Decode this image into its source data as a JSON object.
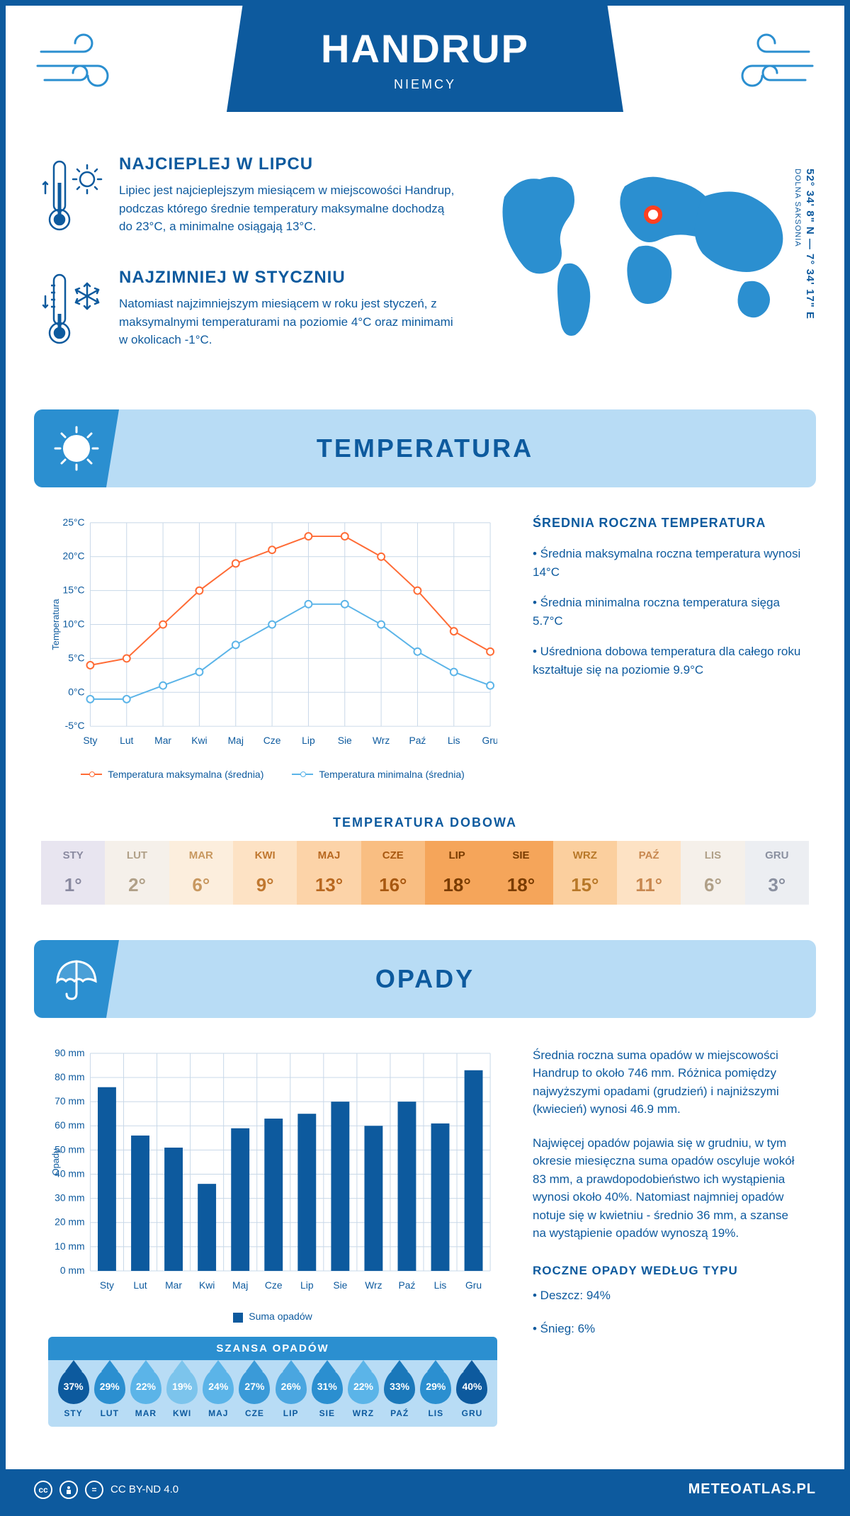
{
  "header": {
    "city": "HANDRUP",
    "country": "NIEMCY",
    "coords": "52° 34' 8\" N — 7° 34' 17\" E",
    "region": "DOLNA SAKSONIA"
  },
  "warmest": {
    "title": "NAJCIEPLEJ W LIPCU",
    "text": "Lipiec jest najcieplejszym miesiącem w miejscowości Handrup, podczas którego średnie temperatury maksymalne dochodzą do 23°C, a minimalne osiągają 13°C."
  },
  "coldest": {
    "title": "NAJZIMNIEJ W STYCZNIU",
    "text": "Natomiast najzimniejszym miesiącem w roku jest styczeń, z maksymalnymi temperaturami na poziomie 4°C oraz minimami w okolicach -1°C."
  },
  "temp_section_title": "TEMPERATURA",
  "temp_chart": {
    "type": "line",
    "months": [
      "Sty",
      "Lut",
      "Mar",
      "Kwi",
      "Maj",
      "Cze",
      "Lip",
      "Sie",
      "Wrz",
      "Paź",
      "Lis",
      "Gru"
    ],
    "y_label": "Temperatura",
    "ylim": [
      -5,
      25
    ],
    "ytick_step": 5,
    "y_unit": "°C",
    "series": [
      {
        "name": "Temperatura maksymalna (średnia)",
        "color": "#ff6b35",
        "values": [
          4,
          5,
          10,
          15,
          19,
          21,
          23,
          23,
          20,
          15,
          9,
          6
        ]
      },
      {
        "name": "Temperatura minimalna (średnia)",
        "color": "#5bb4e8",
        "values": [
          -1,
          -1,
          1,
          3,
          7,
          10,
          13,
          13,
          10,
          6,
          3,
          1
        ]
      }
    ],
    "grid_color": "#c8d8e8",
    "background_color": "#ffffff",
    "line_width": 2,
    "marker": "circle",
    "marker_size": 5
  },
  "temp_stats": {
    "title": "ŚREDNIA ROCZNA TEMPERATURA",
    "bullets": [
      "• Średnia maksymalna roczna temperatura wynosi 14°C",
      "• Średnia minimalna roczna temperatura sięga 5.7°C",
      "• Uśredniona dobowa temperatura dla całego roku kształtuje się na poziomie 9.9°C"
    ]
  },
  "daily_temp": {
    "title": "TEMPERATURA DOBOWA",
    "months": [
      "STY",
      "LUT",
      "MAR",
      "KWI",
      "MAJ",
      "CZE",
      "LIP",
      "SIE",
      "WRZ",
      "PAŹ",
      "LIS",
      "GRU"
    ],
    "values": [
      "1°",
      "2°",
      "6°",
      "9°",
      "13°",
      "16°",
      "18°",
      "18°",
      "15°",
      "11°",
      "6°",
      "3°"
    ],
    "colors": [
      "#e8e5f0",
      "#f5f0ea",
      "#fceedd",
      "#fde2c4",
      "#fcd3a8",
      "#f9be82",
      "#f5a55a",
      "#f5a55a",
      "#fbcf9e",
      "#fde2c4",
      "#f5f0ea",
      "#eceef2"
    ],
    "text_colors": [
      "#8a8aa0",
      "#b0a088",
      "#c89860",
      "#c07830",
      "#b86820",
      "#a85810",
      "#7a3c00",
      "#7a3c00",
      "#b87828",
      "#c88850",
      "#b0a088",
      "#8a90a0"
    ]
  },
  "precip_section_title": "OPADY",
  "precip_chart": {
    "type": "bar",
    "months": [
      "Sty",
      "Lut",
      "Mar",
      "Kwi",
      "Maj",
      "Cze",
      "Lip",
      "Sie",
      "Wrz",
      "Paź",
      "Lis",
      "Gru"
    ],
    "y_label": "Opady",
    "ylim": [
      0,
      90
    ],
    "ytick_step": 10,
    "y_unit": " mm",
    "values": [
      76,
      56,
      51,
      36,
      59,
      63,
      65,
      70,
      60,
      70,
      61,
      83
    ],
    "bar_color": "#0d5a9e",
    "grid_color": "#c8d8e8",
    "bar_width": 0.55,
    "legend_label": "Suma opadów"
  },
  "precip_text": {
    "p1": "Średnia roczna suma opadów w miejscowości Handrup to około 746 mm. Różnica pomiędzy najwyższymi opadami (grudzień) i najniższymi (kwiecień) wynosi 46.9 mm.",
    "p2": "Najwięcej opadów pojawia się w grudniu, w tym okresie miesięczna suma opadów oscyluje wokół 83 mm, a prawdopodobieństwo ich wystąpienia wynosi około 40%. Natomiast najmniej opadów notuje się w kwietniu - średnio 36 mm, a szanse na wystąpienie opadów wynoszą 19%.",
    "type_title": "ROCZNE OPADY WEDŁUG TYPU",
    "type_bullets": [
      "• Deszcz: 94%",
      "• Śnieg: 6%"
    ]
  },
  "chance": {
    "title": "SZANSA OPADÓW",
    "months": [
      "STY",
      "LUT",
      "MAR",
      "KWI",
      "MAJ",
      "CZE",
      "LIP",
      "SIE",
      "WRZ",
      "PAŹ",
      "LIS",
      "GRU"
    ],
    "values": [
      "37%",
      "29%",
      "22%",
      "19%",
      "24%",
      "27%",
      "26%",
      "31%",
      "22%",
      "33%",
      "29%",
      "40%"
    ],
    "colors": [
      "#0d5a9e",
      "#2b8fd0",
      "#5bb4e8",
      "#7cc4ec",
      "#5bb4e8",
      "#3a9ad8",
      "#4aa6e0",
      "#2b8fd0",
      "#5bb4e8",
      "#1a78ba",
      "#2b8fd0",
      "#0d5a9e"
    ]
  },
  "footer": {
    "license": "CC BY-ND 4.0",
    "site": "METEOATLAS.PL"
  }
}
